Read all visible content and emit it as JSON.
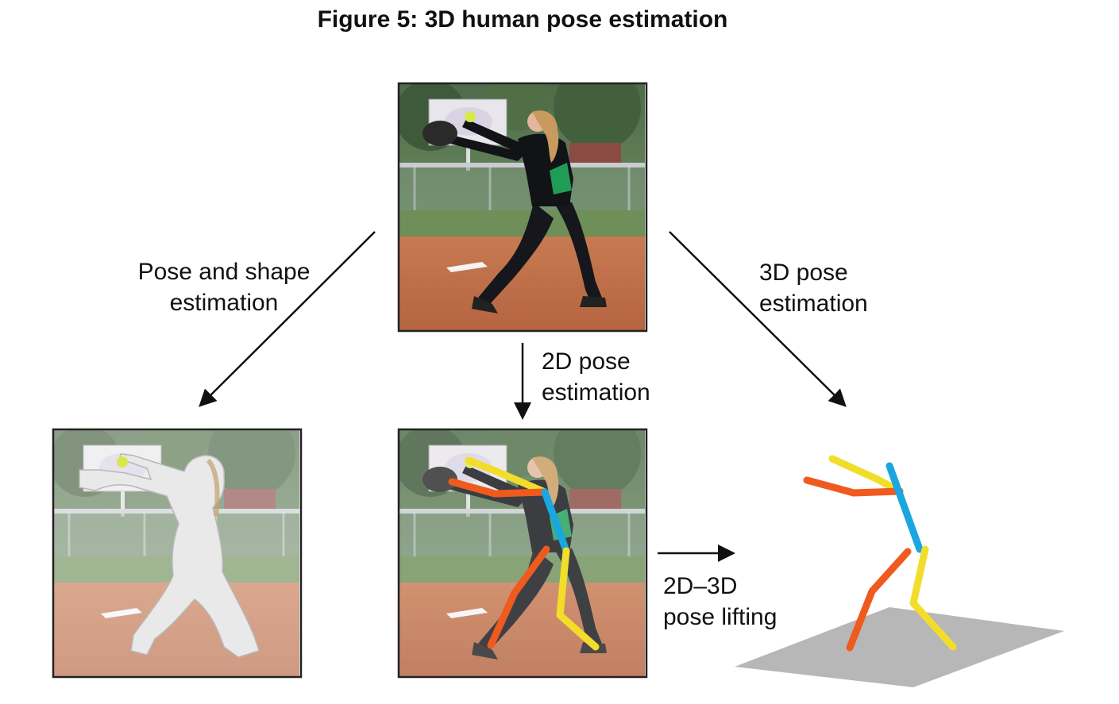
{
  "figure": {
    "title": "Figure 5: 3D human pose estimation"
  },
  "labels": {
    "pose_shape": [
      "Pose and shape",
      "estimation"
    ],
    "pose_3d": [
      "3D pose",
      "estimation"
    ],
    "pose_2d": [
      "2D pose",
      "estimation"
    ],
    "lifting": [
      "2D–3D",
      "pose lifting"
    ]
  },
  "colors": {
    "limb_left": "#ef5a1e",
    "limb_right": "#f2dd2a",
    "spine": "#1aa6e0",
    "ground": "#b7b7b7",
    "frame": "#222222"
  }
}
